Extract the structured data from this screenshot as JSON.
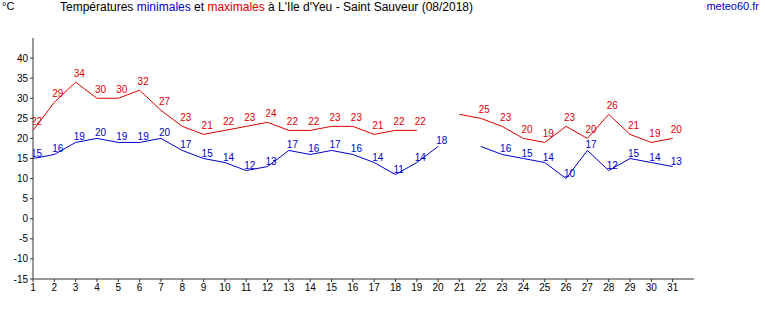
{
  "chart_data": {
    "type": "line",
    "title": "Températures minimales et maximales à L'Ile d'Yeu - Saint Sauveur (08/2018)",
    "y_label": "°C",
    "source": "meteo60.fr",
    "x": [
      1,
      2,
      3,
      4,
      5,
      6,
      7,
      8,
      9,
      10,
      11,
      12,
      13,
      14,
      15,
      16,
      17,
      18,
      19,
      20,
      21,
      22,
      23,
      24,
      25,
      26,
      27,
      28,
      29,
      30,
      31
    ],
    "xlim": [
      1,
      32
    ],
    "xticks": [
      1,
      2,
      3,
      4,
      5,
      6,
      7,
      8,
      9,
      10,
      11,
      12,
      13,
      14,
      15,
      16,
      17,
      18,
      19,
      20,
      21,
      22,
      23,
      24,
      25,
      26,
      27,
      28,
      29,
      30,
      31
    ],
    "ylim": [
      -15,
      45
    ],
    "yticks": [
      -15,
      -10,
      -5,
      0,
      5,
      10,
      15,
      20,
      25,
      30,
      35,
      40
    ],
    "grid": false,
    "data_labels": true,
    "series": [
      {
        "name": "minimales",
        "color": "#0000cc",
        "values": [
          15,
          16,
          19,
          20,
          19,
          19,
          20,
          17,
          15,
          14,
          12,
          13,
          17,
          16,
          17,
          16,
          14,
          11,
          14,
          18,
          null,
          18,
          16,
          15,
          14,
          10,
          17,
          12,
          15,
          14,
          13
        ],
        "value_labels": [
          "15",
          "16",
          "19",
          "20",
          "19",
          "19",
          "20",
          "17",
          "15",
          "14",
          "12",
          "13",
          "17",
          "16",
          "17",
          "16",
          "14",
          "11",
          "14",
          "18",
          null,
          null,
          "16",
          "15",
          "14",
          "10",
          "17",
          "12",
          "15",
          "14",
          "13"
        ]
      },
      {
        "name": "maximales",
        "color": "#dd0000",
        "values": [
          22,
          29,
          34,
          30,
          30,
          32,
          27,
          23,
          21,
          22,
          23,
          24,
          22,
          22,
          23,
          23,
          21,
          22,
          22,
          null,
          26,
          25,
          23,
          20,
          19,
          23,
          20,
          26,
          21,
          19,
          20
        ],
        "value_labels": [
          "22",
          "29",
          "34",
          "30",
          "30",
          "32",
          "27",
          "23",
          "21",
          "22",
          "23",
          "24",
          "22",
          "22",
          "23",
          "23",
          "21",
          "22",
          "22",
          null,
          null,
          "25",
          "23",
          "20",
          "19",
          "23",
          "20",
          "26",
          "21",
          "19",
          "20"
        ]
      }
    ]
  }
}
